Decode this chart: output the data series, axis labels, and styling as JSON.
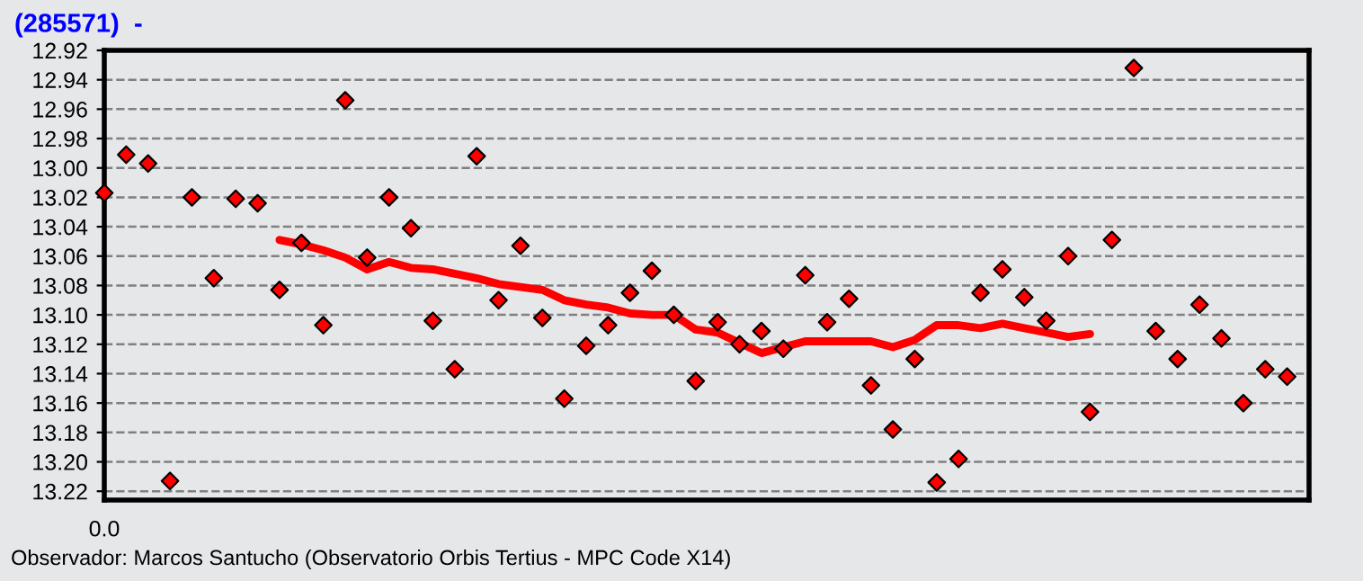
{
  "chart_data": {
    "type": "scatter",
    "title": "(285571)  -",
    "categories": [
      "0.0",
      null,
      null,
      null,
      null,
      null,
      null,
      null,
      null,
      null,
      null,
      null,
      null,
      null,
      null,
      null,
      null,
      null,
      null,
      null,
      null,
      null,
      null,
      null,
      null,
      null,
      null,
      null,
      null,
      null,
      null,
      null,
      null,
      null,
      null,
      null,
      null,
      null,
      null,
      null,
      null,
      null,
      null,
      null,
      null,
      null,
      null,
      null,
      null,
      null,
      null,
      null,
      null,
      null,
      null
    ],
    "series": [
      {
        "color": "#ff0000",
        "marker": "diamond",
        "values": [
          13.017,
          12.991,
          12.997,
          13.213,
          13.02,
          13.075,
          13.021,
          13.024,
          13.083,
          13.051,
          13.107,
          12.954,
          13.061,
          13.02,
          13.041,
          13.104,
          13.137,
          12.992,
          13.09,
          13.053,
          13.102,
          13.157,
          13.121,
          13.107,
          13.085,
          13.07,
          13.1,
          13.145,
          13.105,
          13.12,
          13.111,
          13.123,
          13.073,
          13.105,
          13.089,
          13.148,
          13.178,
          13.13,
          13.214,
          13.198,
          13.085,
          13.069,
          13.088,
          13.104,
          13.06,
          13.166,
          13.049,
          12.932,
          13.111,
          13.13,
          13.093,
          13.116,
          13.16,
          13.137,
          13.142
        ]
      },
      {
        "type": "line",
        "color": "#ff0000",
        "marker": "none",
        "line_style": "solid",
        "values": [
          null,
          null,
          null,
          null,
          null,
          null,
          null,
          null,
          13.049,
          13.052,
          13.056,
          13.061,
          13.069,
          13.064,
          13.068,
          13.069,
          13.072,
          13.075,
          13.079,
          13.081,
          13.083,
          13.09,
          13.093,
          13.095,
          13.099,
          13.1,
          13.1,
          13.11,
          13.112,
          13.119,
          13.126,
          13.122,
          13.118,
          13.118,
          13.118,
          13.118,
          13.122,
          13.117,
          13.107,
          13.107,
          13.109,
          13.106,
          13.109,
          13.112,
          13.115,
          13.113,
          null,
          null,
          null,
          null,
          null,
          null,
          null,
          null,
          null
        ]
      }
    ],
    "ylim": [
      13.226,
      12.92
    ],
    "yticks": [
      12.92,
      12.94,
      12.96,
      12.98,
      {
        "value": 13.0,
        "label": "13.00"
      },
      13.02,
      13.04,
      13.06,
      13.08,
      {
        "value": 13.1,
        "label": "13.10"
      },
      13.12,
      13.14,
      13.16,
      13.18,
      {
        "value": 13.2,
        "label": "13.20"
      },
      13.22
    ],
    "grid": "y",
    "legend": false,
    "annotations": [
      "Observador: Marcos Santucho (Observatorio Orbis Tertius - MPC Code X14)"
    ]
  }
}
